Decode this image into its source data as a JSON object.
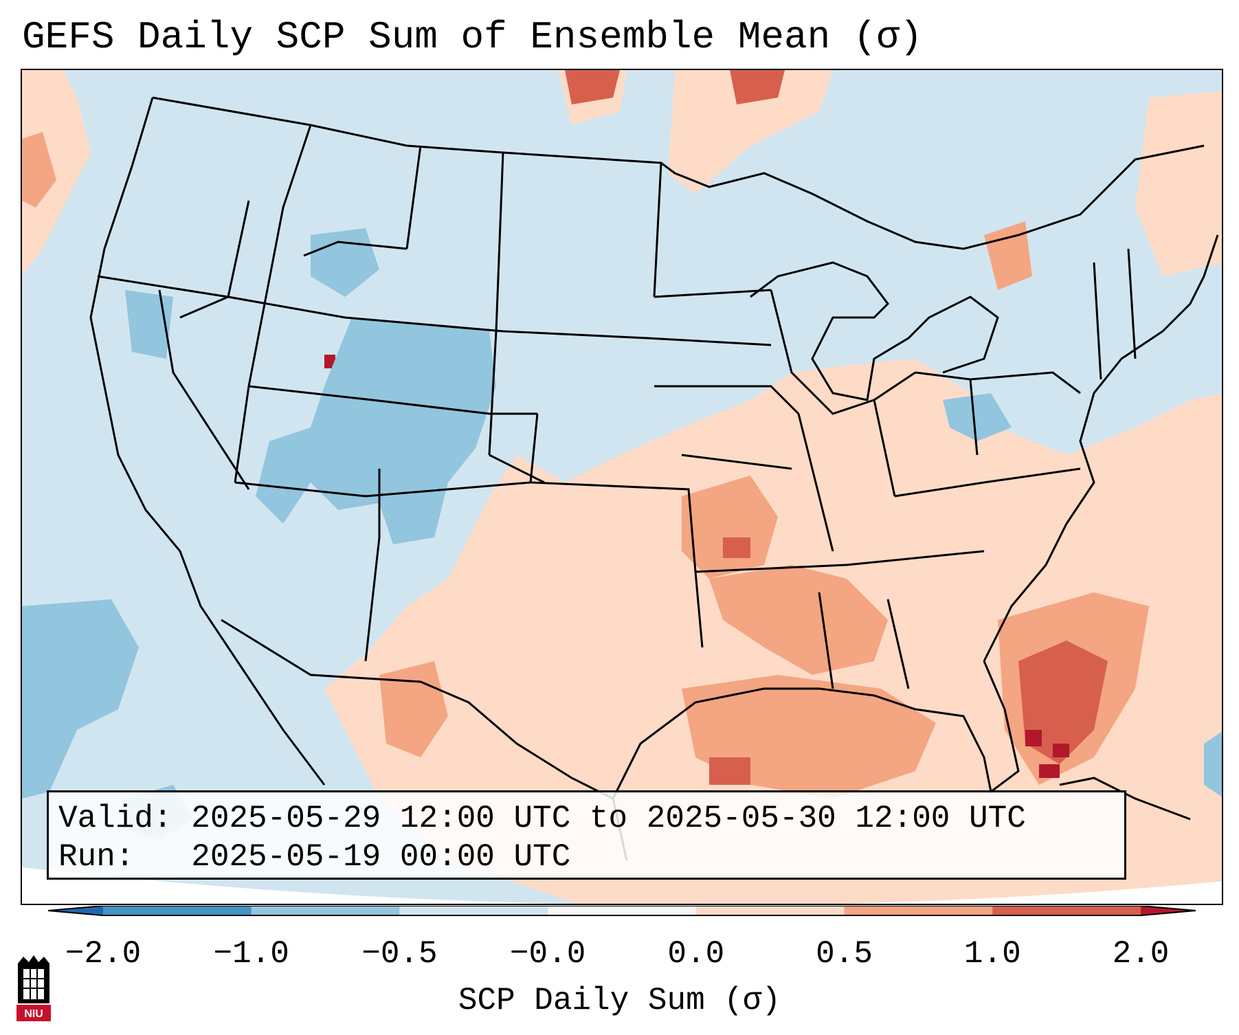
{
  "title": "GEFS Daily SCP Sum of Ensemble Mean (σ)",
  "info": {
    "valid_line": "Valid: 2025-05-29 12:00 UTC to 2025-05-30 12:00 UTC",
    "run_line": "Run:   2025-05-19 00:00 UTC"
  },
  "colorbar": {
    "label": "SCP Daily Sum (σ)",
    "ticks": [
      "−2.0",
      "−1.0",
      "−0.5",
      "−0.0",
      "0.0",
      "0.5",
      "1.0",
      "2.0"
    ],
    "colors": [
      "#4393c3",
      "#92c5de",
      "#d1e5f0",
      "#f7f7f7",
      "#fddbc7",
      "#f4a582",
      "#d6604d"
    ],
    "extend_low": "#2166ac",
    "extend_high": "#b2182b"
  },
  "logo": {
    "text": "NIU",
    "color": "#c8102e"
  },
  "map": {
    "background_class": "-0.5 to -0.0",
    "region": "Continental United States"
  }
}
